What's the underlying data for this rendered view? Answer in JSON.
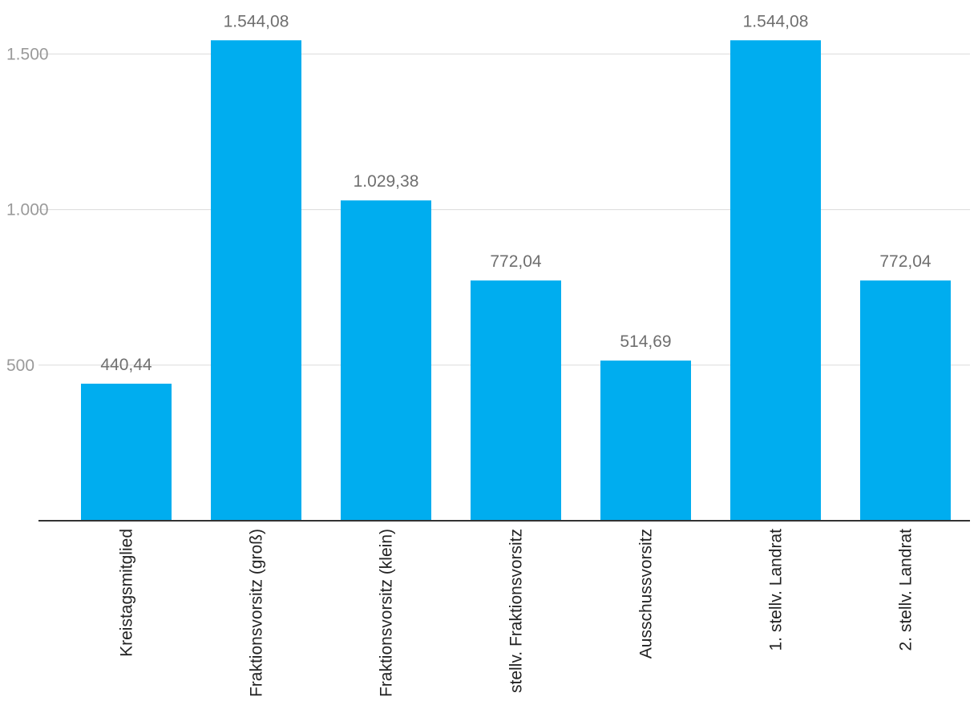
{
  "chart_data": {
    "type": "bar",
    "title": "",
    "xlabel": "",
    "ylabel": "",
    "ylim": [
      0,
      1650
    ],
    "yticks": [
      {
        "value": 500,
        "label": "500"
      },
      {
        "value": 1000,
        "label": "1.000"
      },
      {
        "value": 1500,
        "label": "1.500"
      }
    ],
    "grid": true,
    "bar_color": "#00adef",
    "categories": [
      "Kreistagsmitglied",
      "Fraktionsvorsitz (groß)",
      "Fraktionsvorsitz (klein)",
      "stellv. Fraktionsvorsitz",
      "Ausschussvorsitz",
      "1. stellv. Landrat",
      "2. stellv. Landrat"
    ],
    "values": [
      440.44,
      1544.08,
      1029.38,
      772.04,
      514.69,
      1544.08,
      772.04
    ],
    "value_labels": [
      "440,44",
      "1.544,08",
      "1.029,38",
      "772,04",
      "514,69",
      "1.544,08",
      "772,04"
    ]
  }
}
